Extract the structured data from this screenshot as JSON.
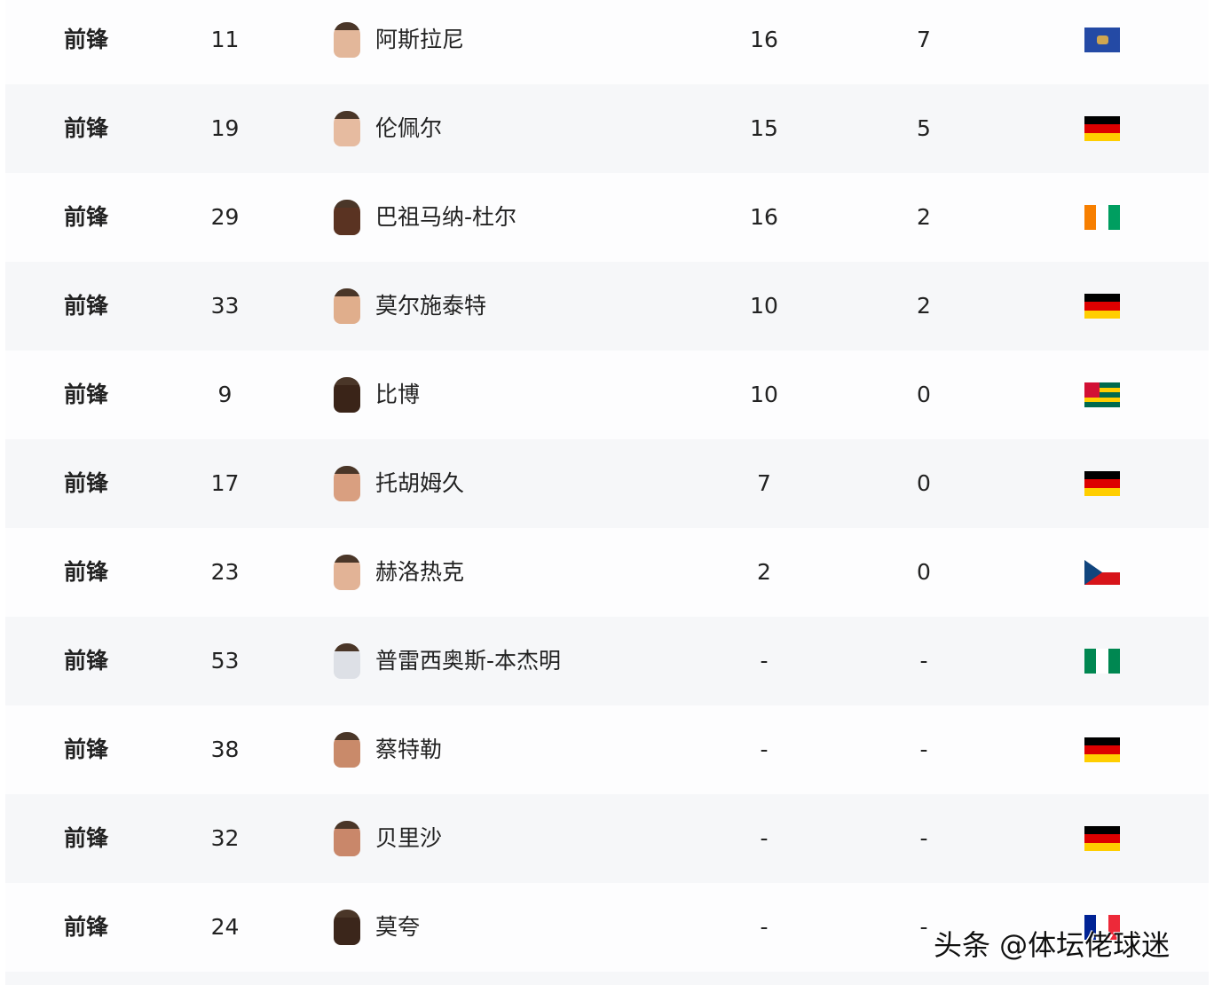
{
  "rows": [
    {
      "position": "前锋",
      "number": "11",
      "name": "阿斯拉尼",
      "apps": "16",
      "goals": "7",
      "flag": "kosovo",
      "skin": "#e3b79a"
    },
    {
      "position": "前锋",
      "number": "19",
      "name": "伦佩尔",
      "apps": "15",
      "goals": "5",
      "flag": "germany",
      "skin": "#e6bba0"
    },
    {
      "position": "前锋",
      "number": "29",
      "name": "巴祖马纳-杜尔",
      "apps": "16",
      "goals": "2",
      "flag": "ivory-coast",
      "skin": "#5a3322"
    },
    {
      "position": "前锋",
      "number": "33",
      "name": "莫尔施泰特",
      "apps": "10",
      "goals": "2",
      "flag": "germany",
      "skin": "#e0ae8c"
    },
    {
      "position": "前锋",
      "number": "9",
      "name": "比博",
      "apps": "10",
      "goals": "0",
      "flag": "togo",
      "skin": "#3a2418"
    },
    {
      "position": "前锋",
      "number": "17",
      "name": "托胡姆久",
      "apps": "7",
      "goals": "0",
      "flag": "germany",
      "skin": "#d99f80"
    },
    {
      "position": "前锋",
      "number": "23",
      "name": "赫洛热克",
      "apps": "2",
      "goals": "0",
      "flag": "czech",
      "skin": "#e2b396"
    },
    {
      "position": "前锋",
      "number": "53",
      "name": "普雷西奥斯-本杰明",
      "apps": "-",
      "goals": "-",
      "flag": "nigeria",
      "skin": "#dde0e6"
    },
    {
      "position": "前锋",
      "number": "38",
      "name": "蔡特勒",
      "apps": "-",
      "goals": "-",
      "flag": "germany",
      "skin": "#c98a6a"
    },
    {
      "position": "前锋",
      "number": "32",
      "name": "贝里沙",
      "apps": "-",
      "goals": "-",
      "flag": "germany",
      "skin": "#c9876a"
    },
    {
      "position": "前锋",
      "number": "24",
      "name": "莫夸",
      "apps": "-",
      "goals": "-",
      "flag": "france",
      "skin": "#3b261b"
    }
  ],
  "watermark": "头条 @体坛佬球迷"
}
